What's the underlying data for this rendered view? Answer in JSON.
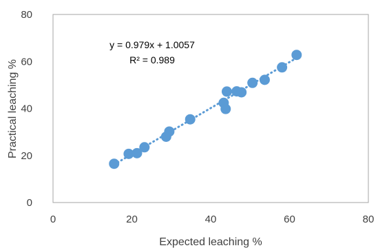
{
  "chart_data": {
    "type": "scatter",
    "xlabel": "Expected leaching %",
    "ylabel": "Practical leaching %",
    "xlim": [
      0,
      80
    ],
    "ylim": [
      0,
      80
    ],
    "xticks": [
      0,
      20,
      40,
      60,
      80
    ],
    "yticks": [
      0,
      20,
      40,
      60,
      80
    ],
    "x_tick_labels": [
      "0",
      "20",
      "40",
      "60",
      "80"
    ],
    "y_tick_labels": [
      "0",
      "20",
      "40",
      "60",
      "80"
    ],
    "grid": false,
    "legend": "none",
    "series": [
      {
        "marker_color": "#5b9bd5",
        "points": [
          {
            "x": 15.5,
            "y": 16.5
          },
          {
            "x": 19.2,
            "y": 20.7
          },
          {
            "x": 21.3,
            "y": 21.0
          },
          {
            "x": 23.2,
            "y": 23.5
          },
          {
            "x": 28.7,
            "y": 28.0
          },
          {
            "x": 29.5,
            "y": 30.2
          },
          {
            "x": 34.8,
            "y": 35.4
          },
          {
            "x": 43.3,
            "y": 42.4
          },
          {
            "x": 43.8,
            "y": 39.8
          },
          {
            "x": 44.1,
            "y": 47.2
          },
          {
            "x": 46.6,
            "y": 47.3
          },
          {
            "x": 47.8,
            "y": 46.9
          },
          {
            "x": 50.6,
            "y": 50.9
          },
          {
            "x": 53.7,
            "y": 52.2
          },
          {
            "x": 58.1,
            "y": 57.5
          },
          {
            "x": 61.8,
            "y": 62.8
          }
        ]
      }
    ],
    "trendline": {
      "type": "linear",
      "slope": 0.979,
      "intercept": 1.0057,
      "x_range": [
        15.5,
        61.8
      ],
      "style": "dotted",
      "color": "#5b9bd5"
    },
    "annotations": {
      "equation": "y = 0.979x + 1.0057",
      "r_squared": "R² = 0.989"
    }
  }
}
